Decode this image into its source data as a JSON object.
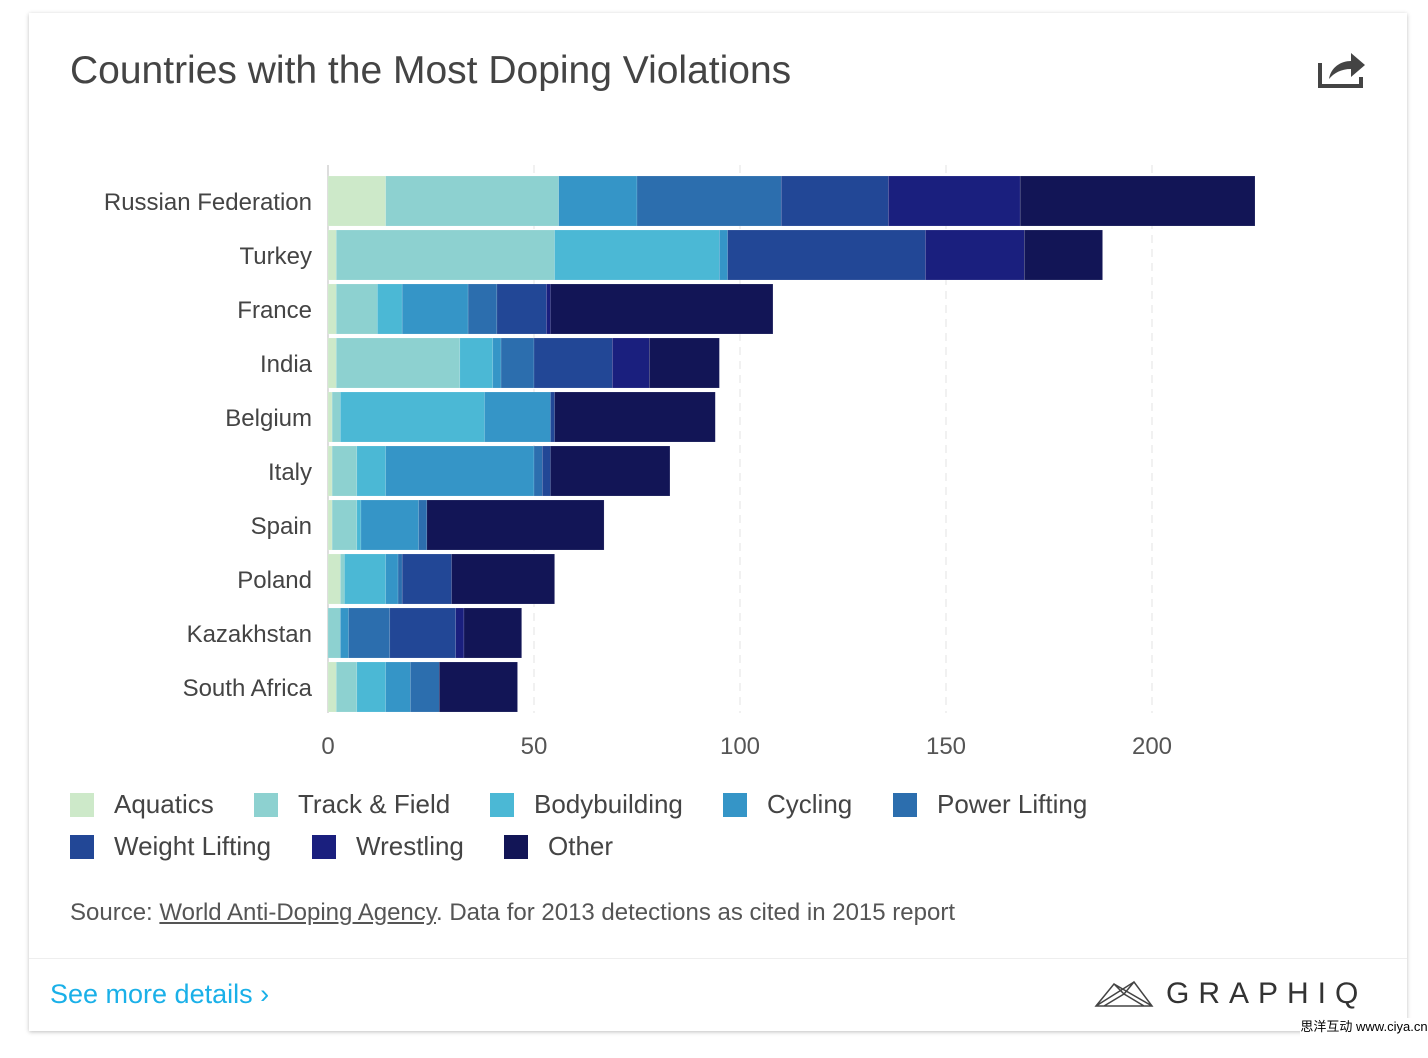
{
  "title": "Countries with the Most Doping Violations",
  "share_icon": "share-icon",
  "chart_data": {
    "type": "bar",
    "orientation": "horizontal",
    "stacked": true,
    "title": "Countries with the Most Doping Violations",
    "categories": [
      "Russian Federation",
      "Turkey",
      "France",
      "India",
      "Belgium",
      "Italy",
      "Spain",
      "Poland",
      "Kazakhstan",
      "South Africa"
    ],
    "series": [
      {
        "name": "Aquatics",
        "color": "#cde9c9",
        "values": [
          14,
          2,
          2,
          2,
          1,
          1,
          1,
          3,
          0,
          2
        ]
      },
      {
        "name": "Track & Field",
        "color": "#8dd1d0",
        "values": [
          42,
          53,
          10,
          30,
          2,
          6,
          6,
          1,
          3,
          5
        ]
      },
      {
        "name": "Bodybuilding",
        "color": "#4bb8d5",
        "values": [
          0,
          40,
          6,
          8,
          35,
          7,
          1,
          10,
          0,
          7
        ]
      },
      {
        "name": "Cycling",
        "color": "#3595c7",
        "values": [
          19,
          2,
          16,
          2,
          16,
          36,
          14,
          3,
          2,
          6
        ]
      },
      {
        "name": "Power Lifting",
        "color": "#2c6eae",
        "values": [
          35,
          0,
          7,
          8,
          0,
          2,
          2,
          1,
          10,
          7
        ]
      },
      {
        "name": "Weight Lifting",
        "color": "#224796",
        "values": [
          26,
          48,
          12,
          19,
          1,
          2,
          0,
          12,
          16,
          0
        ]
      },
      {
        "name": "Wrestling",
        "color": "#1a1f7e",
        "values": [
          32,
          24,
          1,
          9,
          0,
          0,
          0,
          0,
          2,
          0
        ]
      },
      {
        "name": "Other",
        "color": "#121556",
        "values": [
          57,
          19,
          54,
          17,
          39,
          29,
          43,
          25,
          14,
          19
        ]
      }
    ],
    "xticks": [
      "0",
      "50",
      "100",
      "150",
      "200"
    ],
    "xlim": [
      0,
      225
    ],
    "grid": true,
    "legend": "bottom"
  },
  "source": {
    "prefix": "Source: ",
    "link": "World Anti-Doping Agency",
    "suffix": ". Data for 2013 detections as cited in 2015 report"
  },
  "footer": {
    "more": "See more details ›",
    "logo": "GRAPHIQ"
  },
  "watermark": "思洋互动 www.ciya.cn"
}
